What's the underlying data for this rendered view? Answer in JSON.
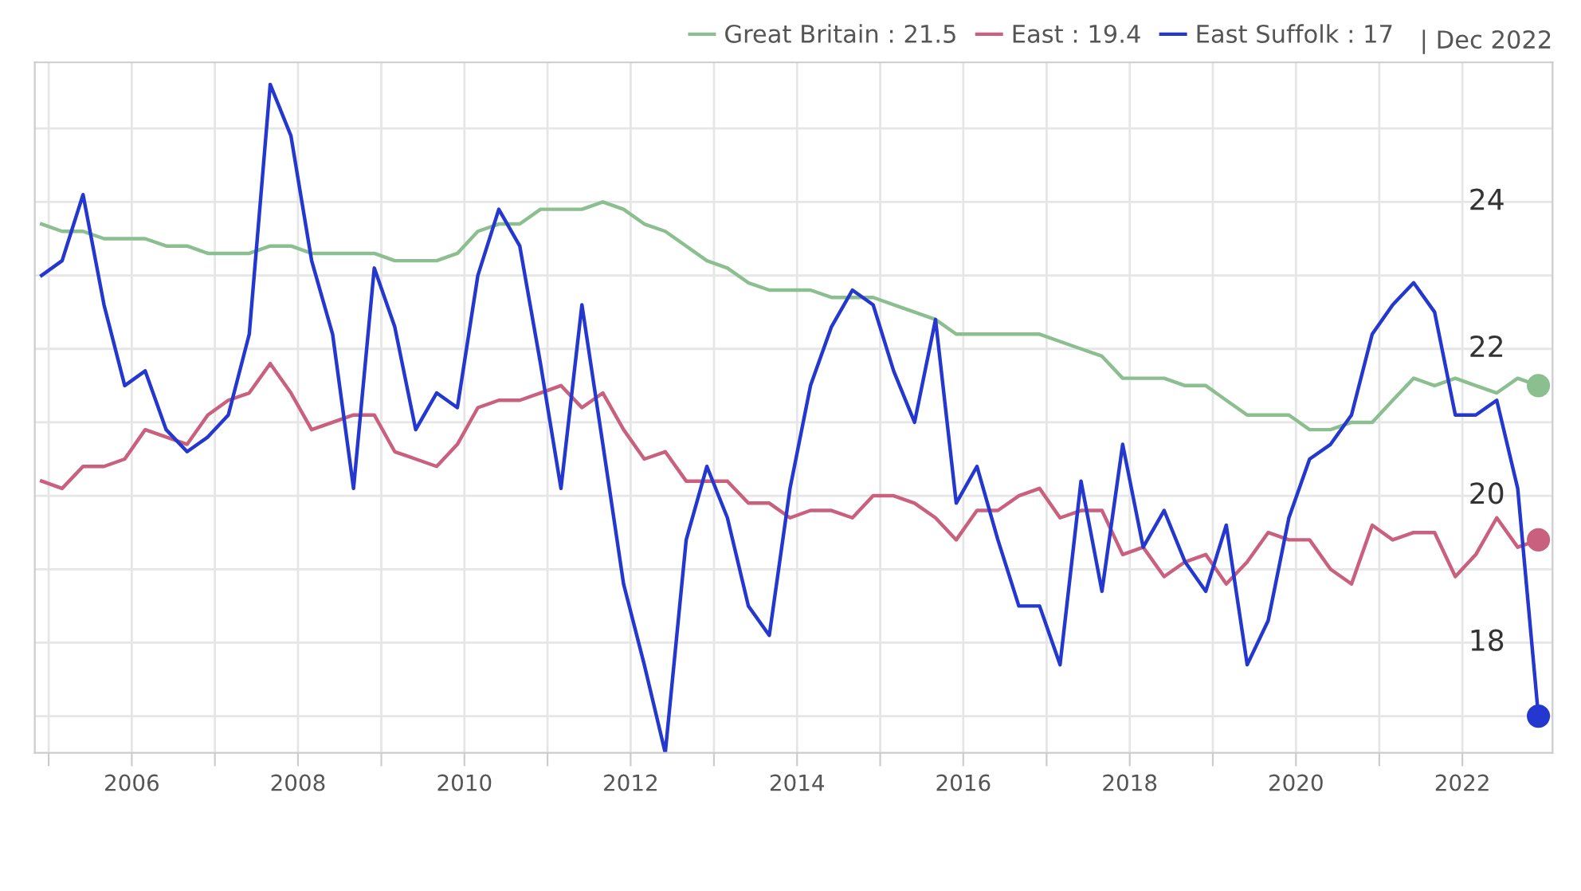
{
  "chart_data": {
    "type": "line",
    "x": [
      "2004-12",
      "2005-03",
      "2005-06",
      "2005-09",
      "2005-12",
      "2006-03",
      "2006-06",
      "2006-09",
      "2006-12",
      "2007-03",
      "2007-06",
      "2007-09",
      "2007-12",
      "2008-03",
      "2008-06",
      "2008-09",
      "2008-12",
      "2009-03",
      "2009-06",
      "2009-09",
      "2009-12",
      "2010-03",
      "2010-06",
      "2010-09",
      "2010-12",
      "2011-03",
      "2011-06",
      "2011-09",
      "2011-12",
      "2012-03",
      "2012-06",
      "2012-09",
      "2012-12",
      "2013-03",
      "2013-06",
      "2013-09",
      "2013-12",
      "2014-03",
      "2014-06",
      "2014-09",
      "2014-12",
      "2015-03",
      "2015-06",
      "2015-09",
      "2015-12",
      "2016-03",
      "2016-06",
      "2016-09",
      "2016-12",
      "2017-03",
      "2017-06",
      "2017-09",
      "2017-12",
      "2018-03",
      "2018-06",
      "2018-09",
      "2018-12",
      "2019-03",
      "2019-06",
      "2019-09",
      "2019-12",
      "2020-03",
      "2020-06",
      "2020-09",
      "2020-12",
      "2021-03",
      "2021-06",
      "2021-09",
      "2021-12",
      "2022-03",
      "2022-06",
      "2022-09",
      "2022-12"
    ],
    "series": [
      {
        "name": "Great Britain : 21.5",
        "color": "#8cbf90",
        "values": [
          23.7,
          23.6,
          23.6,
          23.5,
          23.5,
          23.5,
          23.4,
          23.4,
          23.3,
          23.3,
          23.3,
          23.4,
          23.4,
          23.3,
          23.3,
          23.3,
          23.3,
          23.2,
          23.2,
          23.2,
          23.3,
          23.6,
          23.7,
          23.7,
          23.9,
          23.9,
          23.9,
          24.0,
          23.9,
          23.7,
          23.6,
          23.4,
          23.2,
          23.1,
          22.9,
          22.8,
          22.8,
          22.8,
          22.7,
          22.7,
          22.7,
          22.6,
          22.5,
          22.4,
          22.2,
          22.2,
          22.2,
          22.2,
          22.2,
          22.1,
          22.0,
          21.9,
          21.6,
          21.6,
          21.6,
          21.5,
          21.5,
          21.3,
          21.1,
          21.1,
          21.1,
          20.9,
          20.9,
          21.0,
          21.0,
          21.3,
          21.6,
          21.5,
          21.6,
          21.5,
          21.4,
          21.6,
          21.5
        ]
      },
      {
        "name": "East : 19.4",
        "color": "#c9607e",
        "values": [
          20.2,
          20.1,
          20.4,
          20.4,
          20.5,
          20.9,
          20.8,
          20.7,
          21.1,
          21.3,
          21.4,
          21.8,
          21.4,
          20.9,
          21.0,
          21.1,
          21.1,
          20.6,
          20.5,
          20.4,
          20.7,
          21.2,
          21.3,
          21.3,
          21.4,
          21.5,
          21.2,
          21.4,
          20.9,
          20.5,
          20.6,
          20.2,
          20.2,
          20.2,
          19.9,
          19.9,
          19.7,
          19.8,
          19.8,
          19.7,
          20.0,
          20.0,
          19.9,
          19.7,
          19.4,
          19.8,
          19.8,
          20.0,
          20.1,
          19.7,
          19.8,
          19.8,
          19.2,
          19.3,
          18.9,
          19.1,
          19.2,
          18.8,
          19.1,
          19.5,
          19.4,
          19.4,
          19.0,
          18.8,
          19.6,
          19.4,
          19.5,
          19.5,
          18.9,
          19.2,
          19.7,
          19.3,
          19.4
        ]
      },
      {
        "name": "East Suffolk : 17",
        "color": "#2438d0",
        "values": [
          23.0,
          23.2,
          24.1,
          22.6,
          21.5,
          21.7,
          20.9,
          20.6,
          20.8,
          21.1,
          22.2,
          25.6,
          24.9,
          23.2,
          22.2,
          20.1,
          23.1,
          22.3,
          20.9,
          21.4,
          21.2,
          23.0,
          23.9,
          23.4,
          21.8,
          20.1,
          22.6,
          20.7,
          18.8,
          17.7,
          16.5,
          19.4,
          20.4,
          19.7,
          18.5,
          18.1,
          20.1,
          21.5,
          22.3,
          22.8,
          22.6,
          21.7,
          21.0,
          22.4,
          19.9,
          20.4,
          19.4,
          18.5,
          18.5,
          17.7,
          20.2,
          18.7,
          20.7,
          19.3,
          19.8,
          19.1,
          18.7,
          19.6,
          17.7,
          18.3,
          19.7,
          20.5,
          20.7,
          21.1,
          22.2,
          22.6,
          22.9,
          22.5,
          21.1,
          21.1,
          21.3,
          20.1,
          17
        ]
      }
    ],
    "ylim": [
      16.5,
      25.9
    ],
    "yticks": [
      {
        "value": 17,
        "label": null
      },
      18,
      {
        "value": 19,
        "label": null
      },
      20,
      {
        "value": 21,
        "label": null
      },
      22,
      {
        "value": 23,
        "label": null
      },
      24,
      {
        "value": 25,
        "label": null
      }
    ],
    "xlim": [
      "2004-11",
      "2023-02"
    ],
    "xticks": [
      {
        "value": "2005",
        "label": null
      },
      "2006",
      {
        "value": "2007",
        "label": null
      },
      "2008",
      {
        "value": "2009",
        "label": null
      },
      "2010",
      {
        "value": "2011",
        "label": null
      },
      "2012",
      {
        "value": "2013",
        "label": null
      },
      "2014",
      {
        "value": "2015",
        "label": null
      },
      "2016",
      {
        "value": "2017",
        "label": null
      },
      "2018",
      {
        "value": "2019",
        "label": null
      },
      "2020",
      {
        "value": "2021",
        "label": null
      },
      "2022"
    ],
    "grid": true,
    "legend": "top right",
    "annotations": [
      "| Dec 2022"
    ]
  }
}
